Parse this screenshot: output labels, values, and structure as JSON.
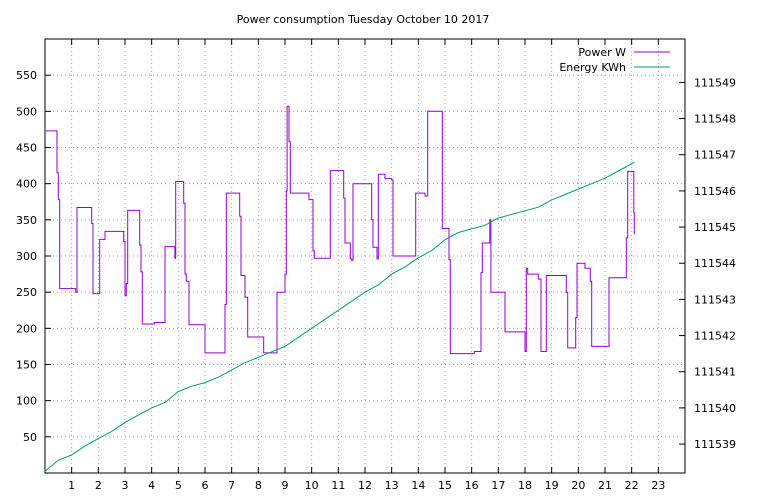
{
  "chart_data": {
    "type": "line",
    "title": "Power consumption Tuesday October 10 2017",
    "legend_position": "top-right",
    "grid": true,
    "x_axis": {
      "range": [
        0,
        24
      ],
      "ticks": [
        1,
        2,
        3,
        4,
        5,
        6,
        7,
        8,
        9,
        10,
        11,
        12,
        13,
        14,
        15,
        16,
        17,
        18,
        19,
        20,
        21,
        22,
        23
      ]
    },
    "y_axis_left": {
      "range": [
        0,
        600
      ],
      "ticks": [
        50,
        100,
        150,
        200,
        250,
        300,
        350,
        400,
        450,
        500,
        550
      ]
    },
    "y_axis_right": {
      "range": [
        111538.2,
        111550.2
      ],
      "ticks": [
        111539,
        111540,
        111541,
        111542,
        111543,
        111544,
        111545,
        111546,
        111547,
        111548,
        111549
      ]
    },
    "series": [
      {
        "name": "Power W",
        "axis": "left",
        "color": "#9400d3",
        "step": true,
        "points": [
          [
            0,
            473
          ],
          [
            0.4,
            473
          ],
          [
            0.45,
            415
          ],
          [
            0.5,
            378
          ],
          [
            0.55,
            255
          ],
          [
            1.15,
            250
          ],
          [
            1.2,
            367
          ],
          [
            1.7,
            367
          ],
          [
            1.75,
            345
          ],
          [
            1.8,
            248
          ],
          [
            2.0,
            248
          ],
          [
            2.05,
            323
          ],
          [
            2.2,
            323
          ],
          [
            2.25,
            334
          ],
          [
            2.9,
            334
          ],
          [
            2.95,
            320
          ],
          [
            3.0,
            245
          ],
          [
            3.05,
            262
          ],
          [
            3.1,
            363
          ],
          [
            3.5,
            363
          ],
          [
            3.55,
            315
          ],
          [
            3.6,
            278
          ],
          [
            3.65,
            206
          ],
          [
            4.05,
            206
          ],
          [
            4.1,
            208
          ],
          [
            4.45,
            208
          ],
          [
            4.5,
            313
          ],
          [
            4.85,
            313
          ],
          [
            4.87,
            297
          ],
          [
            4.9,
            403
          ],
          [
            5.15,
            403
          ],
          [
            5.2,
            373
          ],
          [
            5.25,
            275
          ],
          [
            5.3,
            265
          ],
          [
            5.4,
            205
          ],
          [
            5.95,
            205
          ],
          [
            6.0,
            166
          ],
          [
            6.7,
            166
          ],
          [
            6.75,
            233
          ],
          [
            6.8,
            387
          ],
          [
            7.25,
            387
          ],
          [
            7.3,
            355
          ],
          [
            7.35,
            273
          ],
          [
            7.45,
            273
          ],
          [
            7.5,
            243
          ],
          [
            7.6,
            188
          ],
          [
            8.15,
            188
          ],
          [
            8.2,
            166
          ],
          [
            8.65,
            166
          ],
          [
            8.7,
            250
          ],
          [
            8.95,
            250
          ],
          [
            9.0,
            275
          ],
          [
            9.05,
            390
          ],
          [
            9.08,
            507
          ],
          [
            9.12,
            507
          ],
          [
            9.15,
            458
          ],
          [
            9.2,
            387
          ],
          [
            9.85,
            387
          ],
          [
            9.9,
            378
          ],
          [
            10.0,
            378
          ],
          [
            10.05,
            307
          ],
          [
            10.1,
            297
          ],
          [
            10.65,
            297
          ],
          [
            10.7,
            418
          ],
          [
            11.15,
            418
          ],
          [
            11.2,
            380
          ],
          [
            11.25,
            318
          ],
          [
            11.4,
            318
          ],
          [
            11.45,
            296
          ],
          [
            11.5,
            294
          ],
          [
            11.55,
            400
          ],
          [
            12.2,
            400
          ],
          [
            12.25,
            350
          ],
          [
            12.3,
            312
          ],
          [
            12.4,
            312
          ],
          [
            12.45,
            296
          ],
          [
            12.5,
            413
          ],
          [
            12.7,
            413
          ],
          [
            12.75,
            407
          ],
          [
            12.95,
            407
          ],
          [
            13.0,
            405
          ],
          [
            13.05,
            300
          ],
          [
            13.85,
            300
          ],
          [
            13.9,
            387
          ],
          [
            14.2,
            387
          ],
          [
            14.25,
            383
          ],
          [
            14.35,
            500
          ],
          [
            14.85,
            500
          ],
          [
            14.9,
            338
          ],
          [
            15.1,
            338
          ],
          [
            15.15,
            295
          ],
          [
            15.2,
            165
          ],
          [
            16.05,
            165
          ],
          [
            16.1,
            168
          ],
          [
            16.3,
            168
          ],
          [
            16.35,
            277
          ],
          [
            16.4,
            318
          ],
          [
            16.65,
            318
          ],
          [
            16.68,
            350
          ],
          [
            16.72,
            250
          ],
          [
            17.2,
            250
          ],
          [
            17.25,
            195
          ],
          [
            17.95,
            195
          ],
          [
            18.0,
            168
          ],
          [
            18.05,
            283
          ],
          [
            18.1,
            275
          ],
          [
            18.45,
            275
          ],
          [
            18.5,
            268
          ],
          [
            18.6,
            168
          ],
          [
            18.75,
            168
          ],
          [
            18.8,
            273
          ],
          [
            19.5,
            273
          ],
          [
            19.55,
            250
          ],
          [
            19.6,
            173
          ],
          [
            19.85,
            173
          ],
          [
            19.9,
            215
          ],
          [
            19.95,
            290
          ],
          [
            20.2,
            290
          ],
          [
            20.25,
            283
          ],
          [
            20.4,
            283
          ],
          [
            20.45,
            265
          ],
          [
            20.5,
            175
          ],
          [
            21.1,
            175
          ],
          [
            21.15,
            270
          ],
          [
            21.75,
            270
          ],
          [
            21.8,
            325
          ],
          [
            21.85,
            417
          ],
          [
            22.05,
            417
          ],
          [
            22.08,
            360
          ],
          [
            22.1,
            330
          ]
        ]
      },
      {
        "name": "Energy KWh",
        "axis": "right",
        "color": "#009e73",
        "step": false,
        "points": [
          [
            0,
            111538.25
          ],
          [
            0.5,
            111538.55
          ],
          [
            1.0,
            111538.7
          ],
          [
            1.5,
            111538.95
          ],
          [
            2.0,
            111539.15
          ],
          [
            2.5,
            111539.35
          ],
          [
            3.0,
            111539.6
          ],
          [
            3.5,
            111539.8
          ],
          [
            4.0,
            111540.0
          ],
          [
            4.5,
            111540.15
          ],
          [
            5.0,
            111540.45
          ],
          [
            5.5,
            111540.6
          ],
          [
            6.0,
            111540.7
          ],
          [
            6.5,
            111540.85
          ],
          [
            7.0,
            111541.05
          ],
          [
            7.5,
            111541.25
          ],
          [
            8.0,
            111541.4
          ],
          [
            8.5,
            111541.55
          ],
          [
            9.0,
            111541.7
          ],
          [
            9.5,
            111541.95
          ],
          [
            10.0,
            111542.2
          ],
          [
            10.5,
            111542.45
          ],
          [
            11.0,
            111542.7
          ],
          [
            11.5,
            111542.95
          ],
          [
            12.0,
            111543.2
          ],
          [
            12.5,
            111543.4
          ],
          [
            13.0,
            111543.7
          ],
          [
            13.5,
            111543.9
          ],
          [
            14.0,
            111544.15
          ],
          [
            14.5,
            111544.35
          ],
          [
            15.0,
            111544.65
          ],
          [
            15.5,
            111544.85
          ],
          [
            16.0,
            111544.95
          ],
          [
            16.5,
            111545.05
          ],
          [
            17.0,
            111545.25
          ],
          [
            17.5,
            111545.35
          ],
          [
            18.0,
            111545.45
          ],
          [
            18.5,
            111545.55
          ],
          [
            19.0,
            111545.75
          ],
          [
            19.5,
            111545.9
          ],
          [
            20.0,
            111546.05
          ],
          [
            20.5,
            111546.2
          ],
          [
            21.0,
            111546.35
          ],
          [
            21.5,
            111546.55
          ],
          [
            22.0,
            111546.75
          ],
          [
            22.1,
            111546.8
          ]
        ]
      }
    ]
  }
}
